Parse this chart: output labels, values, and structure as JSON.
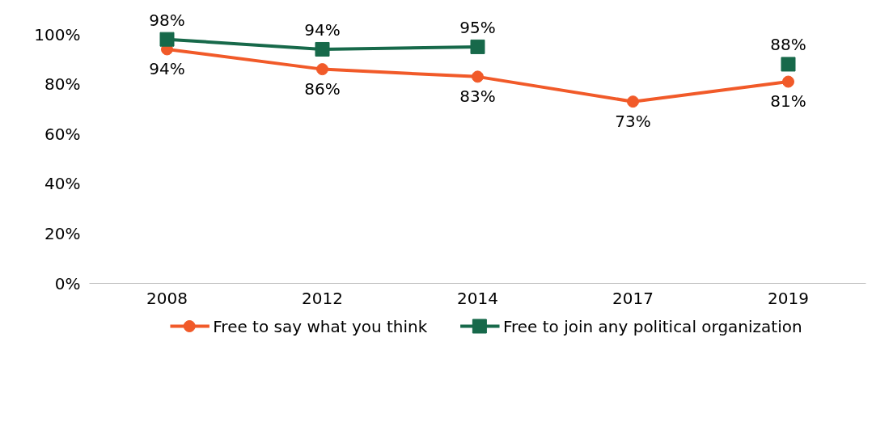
{
  "chart_data": {
    "type": "line",
    "categories": [
      "2008",
      "2012",
      "2014",
      "2017",
      "2019"
    ],
    "ylim": [
      0,
      100
    ],
    "yticks": [
      {
        "value": 0,
        "label": "0%"
      },
      {
        "value": 20,
        "label": "20%"
      },
      {
        "value": 40,
        "label": "40%"
      },
      {
        "value": 60,
        "label": "60%"
      },
      {
        "value": 80,
        "label": "80%"
      },
      {
        "value": 100,
        "label": "100%"
      }
    ],
    "grid": false,
    "legend": "bottom",
    "series": [
      {
        "name": "Free to say what you think",
        "color": "#f15a29",
        "marker": "circle",
        "values": [
          94,
          86,
          83,
          73,
          81
        ],
        "value_labels": [
          "94%",
          "86%",
          "83%",
          "73%",
          "81%"
        ]
      },
      {
        "name": "Free to join any political organization",
        "color": "#17694a",
        "marker": "square",
        "values": [
          98,
          94,
          95,
          null,
          88
        ],
        "value_labels": [
          "98%",
          "94%",
          "95%",
          null,
          "88%"
        ]
      }
    ]
  }
}
